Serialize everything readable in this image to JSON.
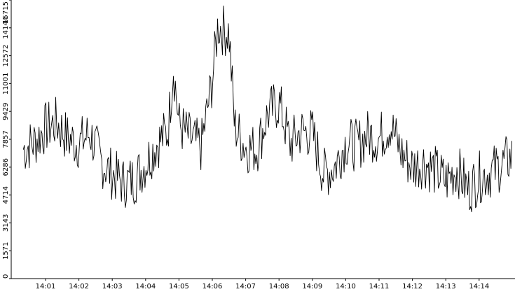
{
  "chart_data": {
    "type": "line",
    "title": "",
    "xlabel": "",
    "ylabel": "",
    "line_color": "#000000",
    "background": "#ffffff",
    "axis_color": "#000000",
    "grid": false,
    "legend": "none",
    "x_ticks": [
      "14:01",
      "14:02",
      "14:03",
      "14:04",
      "14:05",
      "14:06",
      "14:07",
      "14:08",
      "14:09",
      "14:10",
      "14:11",
      "14:12",
      "14:13",
      "14:14"
    ],
    "y_ticks": [
      "0",
      "1571",
      "3143",
      "4714",
      "6286",
      "7857",
      "9429",
      "11001",
      "12572",
      "14144",
      "15715"
    ],
    "ylim": [
      0,
      15715
    ],
    "xlim": [
      "14:00:20",
      "14:15:00"
    ],
    "series": [
      {
        "x": [
          "14:00:20",
          "14:00:40",
          "14:01:00",
          "14:01:20",
          "14:01:40",
          "14:02:00",
          "14:02:20",
          "14:02:40",
          "14:03:00",
          "14:03:20",
          "14:03:40",
          "14:04:00",
          "14:04:20",
          "14:04:40",
          "14:04:50",
          "14:05:00",
          "14:05:20",
          "14:05:40",
          "14:06:00",
          "14:06:10",
          "14:06:20",
          "14:06:30",
          "14:06:40",
          "14:07:00",
          "14:07:20",
          "14:07:40",
          "14:08:00",
          "14:08:20",
          "14:08:40",
          "14:09:00",
          "14:09:20",
          "14:09:40",
          "14:10:00",
          "14:10:20",
          "14:10:40",
          "14:11:00",
          "14:11:20",
          "14:11:40",
          "14:12:00",
          "14:12:20",
          "14:12:40",
          "14:13:00",
          "14:13:20",
          "14:13:40",
          "14:14:00",
          "14:14:20",
          "14:14:40",
          "14:15:00"
        ],
        "values": [
          7300,
          7700,
          8500,
          8800,
          7900,
          7600,
          8200,
          6600,
          5900,
          5400,
          5600,
          6500,
          7600,
          8300,
          12000,
          8700,
          7900,
          7400,
          11200,
          14300,
          14000,
          13900,
          8600,
          7400,
          7300,
          9300,
          9900,
          7600,
          8300,
          8200,
          5900,
          6300,
          7700,
          7500,
          8100,
          7900,
          8700,
          7100,
          6300,
          6600,
          6100,
          5500,
          6200,
          5000,
          5700,
          6000,
          6400,
          6900
        ]
      }
    ]
  }
}
